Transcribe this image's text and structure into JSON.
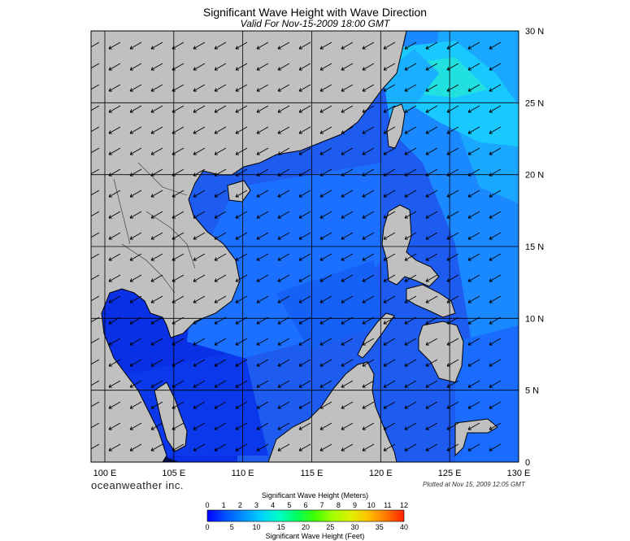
{
  "title": "Significant Wave Height with Wave Direction",
  "subtitle": "Valid For Nov-15-2009 18:00 GMT",
  "brand": "oceanweather inc.",
  "plotted_stamp": "Plotted at Nov 15, 2009 12:05 GMT",
  "map": {
    "lon_range": [
      99,
      130
    ],
    "lat_range": [
      0,
      30
    ],
    "lon_ticks": [
      100,
      105,
      110,
      115,
      120,
      125,
      130
    ],
    "lat_ticks": [
      0,
      5,
      10,
      15,
      20,
      25,
      30
    ],
    "lon_labels": [
      "100 E",
      "105 E",
      "110 E",
      "115 E",
      "120 E",
      "125 E",
      "130 E"
    ],
    "lat_labels": [
      "0",
      "5 N",
      "10 N",
      "15 N",
      "20 N",
      "25 N",
      "30 N"
    ],
    "colors": {
      "land": "#c0c0c0",
      "ocean_base": "#1e64ff",
      "coast": "#000000",
      "grid": "#000000",
      "arrow": "#000000"
    },
    "wave_direction": "toward south-west (NE monsoon)"
  },
  "legend": {
    "title_meters": "Significant Wave Height (Meters)",
    "title_feet": "Significant Wave Height (Feet)",
    "meter_ticks": [
      "0",
      "1",
      "2",
      "3",
      "4",
      "5",
      "6",
      "7",
      "8",
      "9",
      "10",
      "11",
      "12"
    ],
    "feet_ticks": [
      "0",
      "5",
      "10",
      "15",
      "20",
      "25",
      "30",
      "35",
      "40"
    ],
    "colors": [
      "#0000ff",
      "#0050ff",
      "#0090ff",
      "#00d0ff",
      "#00ffc8",
      "#00ff60",
      "#40ff00",
      "#a0ff00",
      "#e0f000",
      "#ffc000",
      "#ff7800",
      "#ff2000"
    ]
  }
}
